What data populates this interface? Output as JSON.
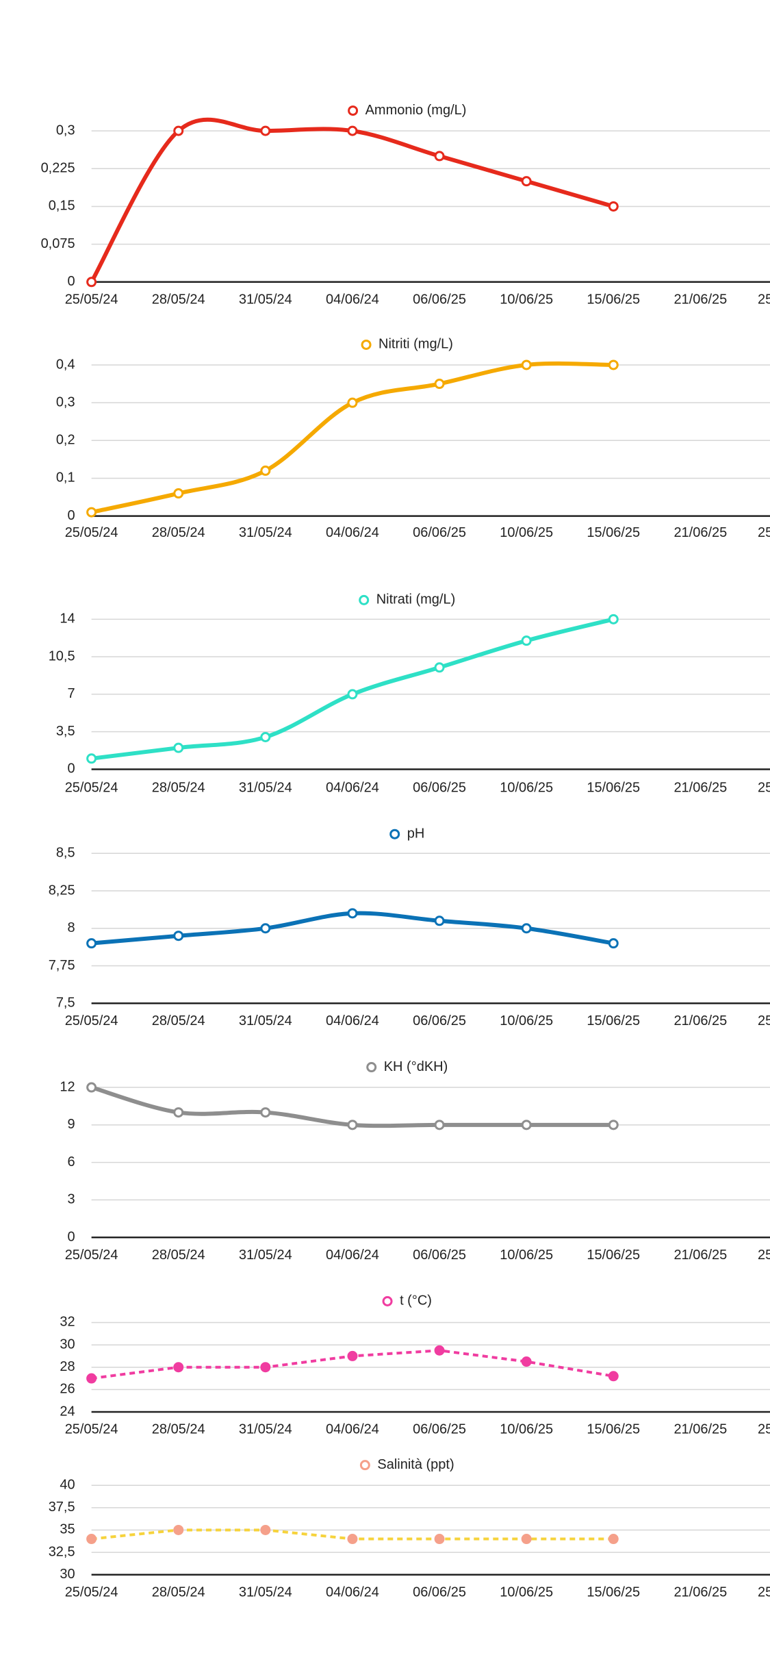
{
  "chart_data": [
    {
      "type": "line",
      "smooth": true,
      "categories": [
        "25/05/24",
        "28/05/24",
        "31/05/24",
        "04/06/24",
        "06/06/25",
        "10/06/25",
        "15/06/25",
        "21/06/25",
        "25"
      ],
      "series": [
        {
          "name": "Ammonio (mg/L)",
          "color": "#e62a1c",
          "values": [
            0,
            0.3,
            0.3,
            0.3,
            0.25,
            0.2,
            0.15,
            null,
            null
          ]
        }
      ],
      "ylim": [
        0,
        0.3
      ],
      "yticks": [
        0,
        {
          "value": 0.075,
          "label": "0,075"
        },
        {
          "value": 0.15,
          "label": "0,15"
        },
        {
          "value": 0.225,
          "label": "0,225"
        },
        {
          "value": 0.3,
          "label": "0,3"
        }
      ],
      "grid": true
    },
    {
      "type": "line",
      "smooth": true,
      "categories": [
        "25/05/24",
        "28/05/24",
        "31/05/24",
        "04/06/24",
        "06/06/25",
        "10/06/25",
        "15/06/25",
        "21/06/25",
        "25"
      ],
      "series": [
        {
          "name": "Nitriti (mg/L)",
          "color": "#f5a900",
          "values": [
            0.01,
            0.06,
            0.12,
            0.3,
            0.35,
            0.4,
            0.4,
            null,
            null
          ]
        }
      ],
      "ylim": [
        0,
        0.4
      ],
      "yticks": [
        0,
        {
          "value": 0.1,
          "label": "0,1"
        },
        {
          "value": 0.2,
          "label": "0,2"
        },
        {
          "value": 0.3,
          "label": "0,3"
        },
        {
          "value": 0.4,
          "label": "0,4"
        }
      ],
      "grid": true
    },
    {
      "type": "line",
      "smooth": true,
      "categories": [
        "25/05/24",
        "28/05/24",
        "31/05/24",
        "04/06/24",
        "06/06/25",
        "10/06/25",
        "15/06/25",
        "21/06/25",
        "25"
      ],
      "series": [
        {
          "name": "Nitrati (mg/L)",
          "color": "#2ee0c6",
          "values": [
            1,
            2,
            3,
            7,
            9.5,
            12,
            14,
            null,
            null
          ]
        }
      ],
      "ylim": [
        0,
        14
      ],
      "yticks": [
        0,
        {
          "value": 3.5,
          "label": "3,5"
        },
        7,
        {
          "value": 10.5,
          "label": "10,5"
        },
        14
      ],
      "grid": true
    },
    {
      "type": "line",
      "smooth": true,
      "categories": [
        "25/05/24",
        "28/05/24",
        "31/05/24",
        "04/06/24",
        "06/06/25",
        "10/06/25",
        "15/06/25",
        "21/06/25",
        "25"
      ],
      "series": [
        {
          "name": "pH",
          "color": "#0b72b6",
          "values": [
            7.9,
            7.95,
            8,
            8.1,
            8.05,
            8,
            7.9,
            null,
            null
          ]
        }
      ],
      "ylim": [
        7.5,
        8.5
      ],
      "yticks": [
        {
          "value": 7.5,
          "label": "7,5"
        },
        {
          "value": 7.75,
          "label": "7,75"
        },
        8,
        {
          "value": 8.25,
          "label": "8,25"
        },
        {
          "value": 8.5,
          "label": "8,5"
        }
      ],
      "grid": true
    },
    {
      "type": "line",
      "smooth": true,
      "categories": [
        "25/05/24",
        "28/05/24",
        "31/05/24",
        "04/06/24",
        "06/06/25",
        "10/06/25",
        "15/06/25",
        "21/06/25",
        "25"
      ],
      "series": [
        {
          "name": "KH (°dKH)",
          "color": "#8e8e8e",
          "values": [
            12,
            10,
            10,
            9,
            9,
            9,
            9,
            null,
            null
          ]
        }
      ],
      "ylim": [
        0,
        12
      ],
      "yticks": [
        0,
        3,
        6,
        9,
        12
      ],
      "grid": true
    },
    {
      "type": "line",
      "smooth": false,
      "dashed": true,
      "categories": [
        "25/05/24",
        "28/05/24",
        "31/05/24",
        "04/06/24",
        "06/06/25",
        "10/06/25",
        "15/06/25",
        "21/06/25",
        "25"
      ],
      "series": [
        {
          "name": "t (°C)",
          "color": "#f03ca0",
          "values": [
            27,
            28,
            28,
            29,
            29.5,
            28.5,
            27.2,
            null,
            null
          ]
        }
      ],
      "ylim": [
        24,
        32
      ],
      "yticks": [
        24,
        26,
        28,
        30,
        32
      ],
      "grid": true
    },
    {
      "type": "line",
      "smooth": false,
      "dashed": true,
      "categories": [
        "25/05/24",
        "28/05/24",
        "31/05/24",
        "04/06/24",
        "06/06/25",
        "10/06/25",
        "15/06/25",
        "21/06/25",
        "25"
      ],
      "series": [
        {
          "name": "Salinità (ppt)",
          "color": "#f6d33c",
          "marker_color": "#f5a08a",
          "values": [
            34,
            35,
            35,
            34,
            34,
            34,
            34,
            null,
            null
          ]
        }
      ],
      "ylim": [
        30,
        40
      ],
      "yticks": [
        30,
        {
          "value": 32.5,
          "label": "32,5"
        },
        35,
        {
          "value": 37.5,
          "label": "37,5"
        },
        40
      ],
      "grid": true
    }
  ]
}
